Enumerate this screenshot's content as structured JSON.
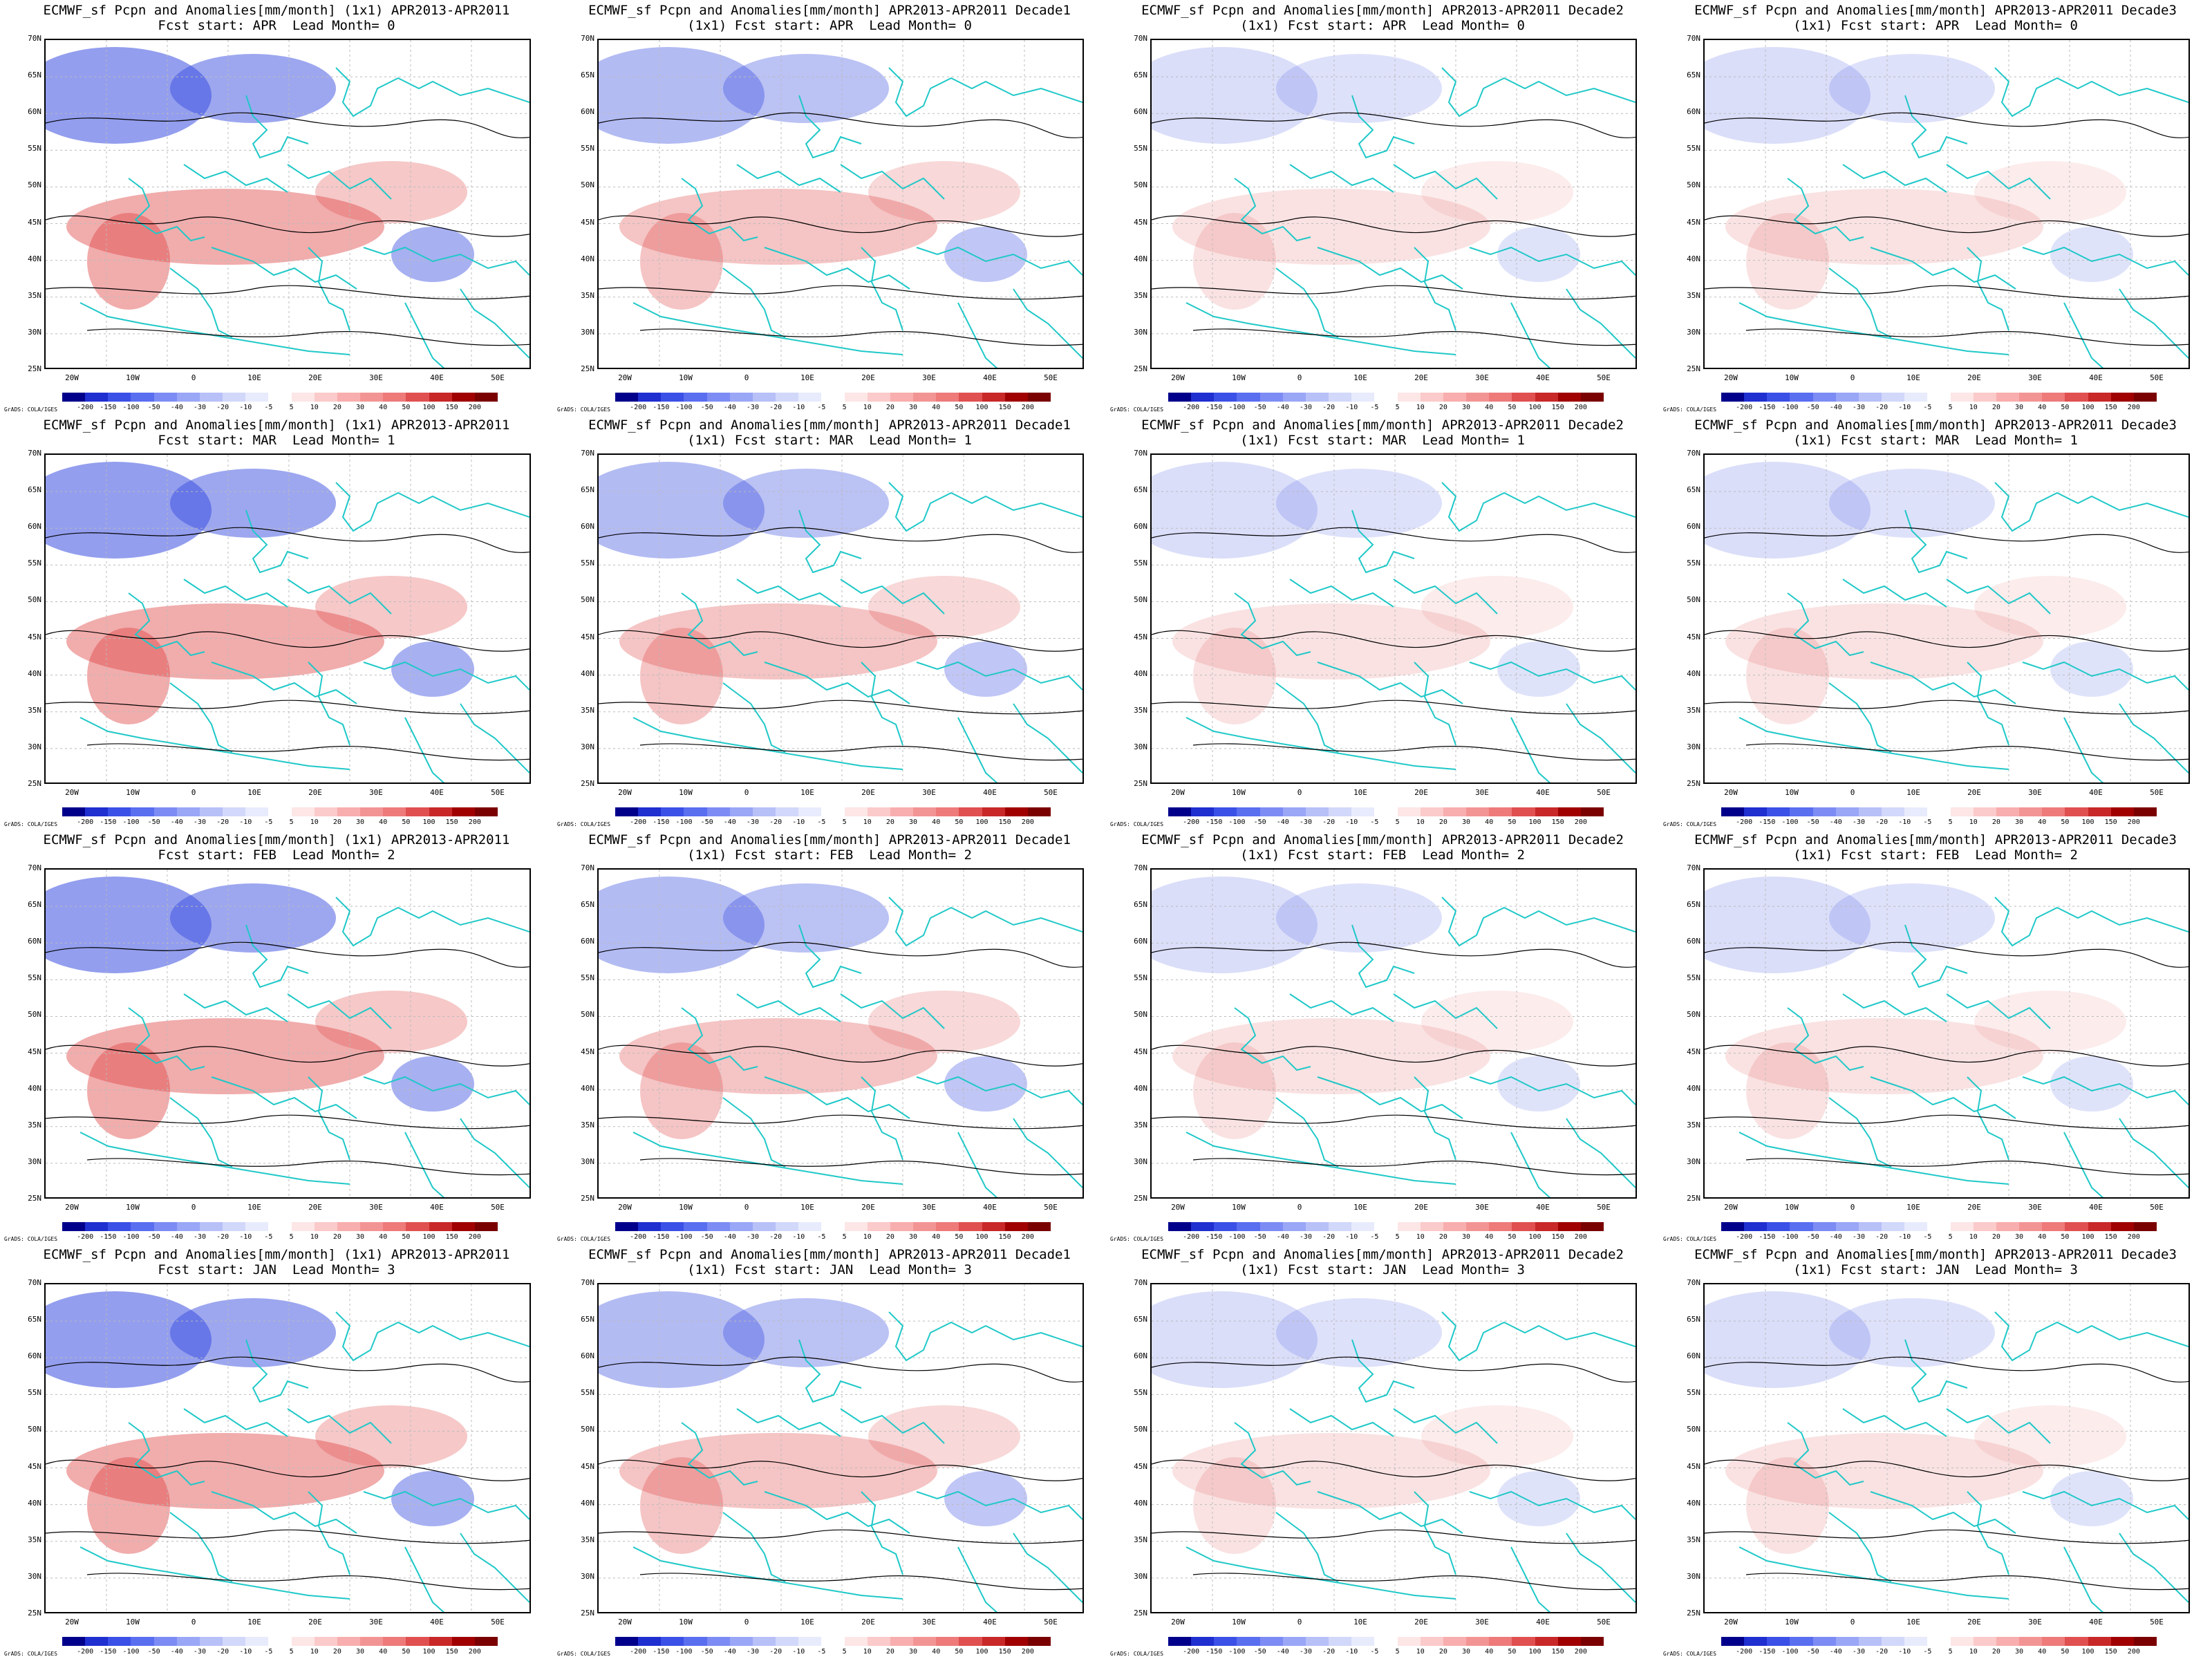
{
  "panels": [
    {
      "title1": "ECMWF_sf Pcpn and Anomalies[mm/month] (1x1) APR2013-APR2011",
      "title2": "Fcst start: APR  Lead Month= 0"
    },
    {
      "title1": "ECMWF_sf Pcpn and Anomalies[mm/month] APR2013-APR2011 Decade1",
      "title2": "(1x1) Fcst start: APR  Lead Month= 0"
    },
    {
      "title1": "ECMWF_sf Pcpn and Anomalies[mm/month] APR2013-APR2011 Decade2",
      "title2": "(1x1) Fcst start: APR  Lead Month= 0"
    },
    {
      "title1": "ECMWF_sf Pcpn and Anomalies[mm/month] APR2013-APR2011 Decade3",
      "title2": "(1x1) Fcst start: APR  Lead Month= 0"
    },
    {
      "title1": "ECMWF_sf Pcpn and Anomalies[mm/month] (1x1) APR2013-APR2011",
      "title2": "Fcst start: MAR  Lead Month= 1"
    },
    {
      "title1": "ECMWF_sf Pcpn and Anomalies[mm/month] APR2013-APR2011 Decade1",
      "title2": "(1x1) Fcst start: MAR  Lead Month= 1"
    },
    {
      "title1": "ECMWF_sf Pcpn and Anomalies[mm/month] APR2013-APR2011 Decade2",
      "title2": "(1x1) Fcst start: MAR  Lead Month= 1"
    },
    {
      "title1": "ECMWF_sf Pcpn and Anomalies[mm/month] APR2013-APR2011 Decade3",
      "title2": "(1x1) Fcst start: MAR  Lead Month= 1"
    },
    {
      "title1": "ECMWF_sf Pcpn and Anomalies[mm/month] (1x1) APR2013-APR2011",
      "title2": "Fcst start: FEB  Lead Month= 2"
    },
    {
      "title1": "ECMWF_sf Pcpn and Anomalies[mm/month] APR2013-APR2011 Decade1",
      "title2": "(1x1) Fcst start: FEB  Lead Month= 2"
    },
    {
      "title1": "ECMWF_sf Pcpn and Anomalies[mm/month] APR2013-APR2011 Decade2",
      "title2": "(1x1) Fcst start: FEB  Lead Month= 2"
    },
    {
      "title1": "ECMWF_sf Pcpn and Anomalies[mm/month] APR2013-APR2011 Decade3",
      "title2": "(1x1) Fcst start: FEB  Lead Month= 2"
    },
    {
      "title1": "ECMWF_sf Pcpn and Anomalies[mm/month] (1x1) APR2013-APR2011",
      "title2": "Fcst start: JAN  Lead Month= 3"
    },
    {
      "title1": "ECMWF_sf Pcpn and Anomalies[mm/month] APR2013-APR2011 Decade1",
      "title2": "(1x1) Fcst start: JAN  Lead Month= 3"
    },
    {
      "title1": "ECMWF_sf Pcpn and Anomalies[mm/month] APR2013-APR2011 Decade2",
      "title2": "(1x1) Fcst start: JAN  Lead Month= 3"
    },
    {
      "title1": "ECMWF_sf Pcpn and Anomalies[mm/month] APR2013-APR2011 Decade3",
      "title2": "(1x1) Fcst start: JAN  Lead Month= 3"
    }
  ],
  "lat_labels": [
    "70N",
    "65N",
    "60N",
    "55N",
    "50N",
    "45N",
    "40N",
    "35N",
    "30N",
    "25N"
  ],
  "lon_labels": [
    "20W",
    "10W",
    "0",
    "10E",
    "20E",
    "30E",
    "40E",
    "50E"
  ],
  "colorbar": {
    "labels": [
      "-200",
      "-150",
      "-100",
      "-50",
      "-40",
      "-30",
      "-20",
      "-10",
      "-5",
      "5",
      "10",
      "20",
      "30",
      "40",
      "50",
      "100",
      "150",
      "200"
    ],
    "colors": [
      "#00008b",
      "#1f2fd0",
      "#3b50e6",
      "#5a6ef0",
      "#7d8cf4",
      "#9aa6f6",
      "#b8c0f8",
      "#d2d8fa",
      "#e8ebfc",
      "#ffffff",
      "#fde6e6",
      "#fbcaca",
      "#f8aeae",
      "#f39494",
      "#ee7a7a",
      "#e05050",
      "#c82828",
      "#a00000",
      "#7a0000"
    ]
  },
  "credit": "GrADS: COLA/IGES",
  "colors": {
    "coast": "#20c8c8",
    "contour": "#000000",
    "wet": "#e04848",
    "dry": "#3b4fe0"
  }
}
